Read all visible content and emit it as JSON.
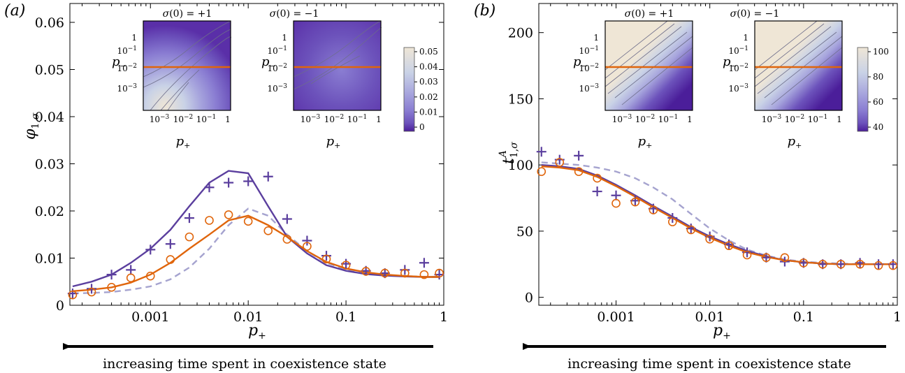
{
  "chart_data": [
    {
      "panel": "(a)",
      "type": "line",
      "xscale": "log",
      "xlabel": "p+",
      "ylabel": "φ1,σ",
      "xlim": [
        0.00015,
        1.0
      ],
      "ylim": [
        0,
        0.064
      ],
      "xticks": [
        0.001,
        0.01,
        0.1,
        1
      ],
      "xtick_labels": [
        "0.001",
        "0.01",
        "0.1",
        "1"
      ],
      "yticks": [
        0,
        0.01,
        0.02,
        0.03,
        0.04,
        0.05,
        0.06
      ],
      "ytick_labels": [
        "0",
        "0.01",
        "0.02",
        "0.03",
        "0.04",
        "0.05",
        "0.06"
      ],
      "grid": false,
      "series": [
        {
          "kind": "line",
          "style": "solid",
          "color": "#5b3f9e",
          "x": [
            0.00016,
            0.00025,
            0.0004,
            0.00063,
            0.001,
            0.0016,
            0.0025,
            0.004,
            0.0063,
            0.01,
            0.016,
            0.025,
            0.04,
            0.063,
            0.1,
            0.16,
            0.25,
            0.4,
            0.63,
            0.9
          ],
          "y": [
            0.004,
            0.005,
            0.0065,
            0.009,
            0.012,
            0.016,
            0.021,
            0.026,
            0.0285,
            0.028,
            0.021,
            0.0145,
            0.011,
            0.0085,
            0.0073,
            0.0066,
            0.0063,
            0.0061,
            0.006,
            0.006
          ]
        },
        {
          "kind": "line",
          "style": "solid",
          "color": "#e0650b",
          "x": [
            0.00016,
            0.00025,
            0.0004,
            0.00063,
            0.001,
            0.0016,
            0.0025,
            0.004,
            0.0063,
            0.01,
            0.016,
            0.025,
            0.04,
            0.063,
            0.1,
            0.16,
            0.25,
            0.4,
            0.63,
            0.9
          ],
          "y": [
            0.003,
            0.0033,
            0.0038,
            0.0048,
            0.0065,
            0.009,
            0.012,
            0.015,
            0.018,
            0.019,
            0.017,
            0.0145,
            0.0115,
            0.0092,
            0.0078,
            0.007,
            0.0065,
            0.0062,
            0.006,
            0.006
          ]
        },
        {
          "kind": "line",
          "style": "dashed",
          "color": "#a5a3cf",
          "x": [
            0.00016,
            0.00025,
            0.0004,
            0.00063,
            0.001,
            0.0016,
            0.0025,
            0.004,
            0.0063,
            0.01,
            0.016,
            0.025,
            0.04,
            0.063,
            0.1,
            0.16,
            0.25,
            0.4,
            0.63,
            0.9
          ],
          "y": [
            0.0025,
            0.0026,
            0.0028,
            0.0033,
            0.004,
            0.0055,
            0.008,
            0.012,
            0.017,
            0.0205,
            0.019,
            0.015,
            0.0115,
            0.009,
            0.0076,
            0.0068,
            0.0064,
            0.0062,
            0.006,
            0.006
          ]
        },
        {
          "kind": "scatter",
          "marker": "plus",
          "color": "#5b3f9e",
          "x": [
            0.00016,
            0.00025,
            0.0004,
            0.00063,
            0.001,
            0.0016,
            0.0025,
            0.004,
            0.0063,
            0.01,
            0.016,
            0.025,
            0.04,
            0.063,
            0.1,
            0.16,
            0.25,
            0.4,
            0.63,
            0.9
          ],
          "y": [
            0.0025,
            0.0035,
            0.0065,
            0.0075,
            0.0118,
            0.013,
            0.0185,
            0.025,
            0.026,
            0.0263,
            0.0273,
            0.0183,
            0.0137,
            0.0105,
            0.0088,
            0.0073,
            0.0068,
            0.0075,
            0.009,
            0.0065
          ]
        },
        {
          "kind": "scatter",
          "marker": "circle",
          "color": "#e0650b",
          "x": [
            0.00016,
            0.00025,
            0.0004,
            0.00063,
            0.001,
            0.0016,
            0.0025,
            0.004,
            0.0063,
            0.01,
            0.016,
            0.025,
            0.04,
            0.063,
            0.1,
            0.16,
            0.25,
            0.4,
            0.63,
            0.9
          ],
          "y": [
            0.0022,
            0.0028,
            0.0038,
            0.0058,
            0.0062,
            0.0097,
            0.0145,
            0.018,
            0.0192,
            0.0178,
            0.0158,
            0.014,
            0.0125,
            0.0098,
            0.0085,
            0.0072,
            0.0068,
            0.0068,
            0.0065,
            0.0068
          ]
        }
      ],
      "insets": [
        {
          "title": "σ(0) = +1",
          "xlabel": "p+",
          "ylabel": "p−",
          "yticks": [
            "1",
            "10−1",
            "10−2",
            "10−3"
          ],
          "xticks": [
            "10−3",
            "10−2",
            "10−1",
            "1"
          ],
          "horizontal_line_at_p_minus": 0.01,
          "line_color": "#e0650b"
        },
        {
          "title": "σ(0) = −1",
          "xlabel": "p+",
          "ylabel": "p−",
          "yticks": [
            "1",
            "10−1",
            "10−2",
            "10−3"
          ],
          "xticks": [
            "10−3",
            "10−2",
            "10−1",
            "1"
          ],
          "horizontal_line_at_p_minus": 0.01,
          "line_color": "#e0650b"
        }
      ],
      "colorbar": {
        "ticks": [
          "0.05",
          "0.04",
          "0.03",
          "0.02",
          "0.01",
          "0"
        ],
        "colors": [
          "#efe6d6",
          "#c9d2e6",
          "#a7a5dd",
          "#8a7dd2",
          "#6c52bb",
          "#4b1e9a"
        ]
      }
    },
    {
      "panel": "(b)",
      "type": "line",
      "xscale": "log",
      "xlabel": "p+",
      "ylabel": "t1,σA",
      "xlim": [
        0.00015,
        1.0
      ],
      "ylim": [
        -6,
        222
      ],
      "xticks": [
        0.001,
        0.01,
        0.1,
        1
      ],
      "xtick_labels": [
        "0.001",
        "0.01",
        "0.1",
        "1"
      ],
      "yticks": [
        0,
        50,
        100,
        150,
        200
      ],
      "ytick_labels": [
        "0",
        "50",
        "100",
        "150",
        "200"
      ],
      "grid": false,
      "series": [
        {
          "kind": "line",
          "style": "solid",
          "color": "#5b3f9e",
          "x": [
            0.00016,
            0.00025,
            0.0004,
            0.00063,
            0.001,
            0.0016,
            0.0025,
            0.004,
            0.0063,
            0.01,
            0.016,
            0.025,
            0.04,
            0.063,
            0.1,
            0.16,
            0.25,
            0.4,
            0.63,
            0.9
          ],
          "y": [
            100,
            99,
            97,
            92,
            85,
            77,
            69,
            61,
            53,
            46,
            40,
            35,
            31,
            28,
            26.5,
            25.5,
            25,
            25,
            25,
            25
          ]
        },
        {
          "kind": "line",
          "style": "solid",
          "color": "#e0650b",
          "x": [
            0.00016,
            0.00025,
            0.0004,
            0.00063,
            0.001,
            0.0016,
            0.0025,
            0.004,
            0.0063,
            0.01,
            0.016,
            0.025,
            0.04,
            0.063,
            0.1,
            0.16,
            0.25,
            0.4,
            0.63,
            0.9
          ],
          "y": [
            99,
            98,
            96,
            91,
            84,
            76,
            68,
            60,
            52,
            45,
            39,
            34,
            30.5,
            28,
            26.5,
            25.5,
            25,
            25,
            25,
            25
          ]
        },
        {
          "kind": "line",
          "style": "dashed",
          "color": "#a5a3cf",
          "x": [
            0.00016,
            0.00025,
            0.0004,
            0.00063,
            0.001,
            0.0016,
            0.0025,
            0.004,
            0.0063,
            0.01,
            0.016,
            0.025,
            0.04,
            0.063,
            0.1,
            0.16,
            0.25,
            0.4,
            0.63,
            0.9
          ],
          "y": [
            102,
            101,
            100,
            98,
            95,
            90,
            83,
            74,
            63,
            52,
            43,
            36,
            31.5,
            28.5,
            27,
            26,
            25.5,
            25,
            25,
            25
          ]
        },
        {
          "kind": "scatter",
          "marker": "plus",
          "color": "#5b3f9e",
          "x": [
            0.00016,
            0.00025,
            0.0004,
            0.00063,
            0.001,
            0.0016,
            0.0025,
            0.004,
            0.0063,
            0.01,
            0.016,
            0.025,
            0.04,
            0.063,
            0.1,
            0.16,
            0.25,
            0.4,
            0.63,
            0.9
          ],
          "y": [
            110,
            104,
            107,
            80,
            77,
            73,
            67,
            60,
            52,
            46,
            40,
            34,
            30,
            27,
            26,
            25,
            25,
            26,
            25,
            25
          ]
        },
        {
          "kind": "scatter",
          "marker": "circle",
          "color": "#e0650b",
          "x": [
            0.00016,
            0.00025,
            0.0004,
            0.00063,
            0.001,
            0.0016,
            0.0025,
            0.004,
            0.0063,
            0.01,
            0.016,
            0.025,
            0.04,
            0.063,
            0.1,
            0.16,
            0.25,
            0.4,
            0.63,
            0.9
          ],
          "y": [
            95,
            102,
            95,
            90,
            71,
            72,
            66,
            57,
            51,
            44,
            39,
            32,
            30,
            30,
            26,
            25,
            25,
            25,
            24,
            24
          ]
        }
      ],
      "insets": [
        {
          "title": "σ(0) = +1",
          "xlabel": "p+",
          "ylabel": "p−",
          "yticks": [
            "1",
            "10−1",
            "10−2",
            "10−3"
          ],
          "xticks": [
            "10−3",
            "10−2",
            "10−1",
            "1"
          ],
          "horizontal_line_at_p_minus": 0.01,
          "line_color": "#e0650b"
        },
        {
          "title": "σ(0) = −1",
          "xlabel": "p+",
          "ylabel": "p−",
          "yticks": [
            "1",
            "10−1",
            "10−2",
            "10−3"
          ],
          "xticks": [
            "10−3",
            "10−2",
            "10−1",
            "1"
          ],
          "horizontal_line_at_p_minus": 0.01,
          "line_color": "#e0650b"
        }
      ],
      "colorbar": {
        "ticks": [
          "100",
          "80",
          "60",
          "40"
        ],
        "colors": [
          "#efe6d6",
          "#c9d2e6",
          "#a7a5dd",
          "#8a7dd2",
          "#6c52bb",
          "#4b1e9a"
        ]
      }
    }
  ],
  "arrow_caption": "increasing time spent in coexistence state",
  "panel_labels": [
    "(a)",
    "(b)"
  ]
}
